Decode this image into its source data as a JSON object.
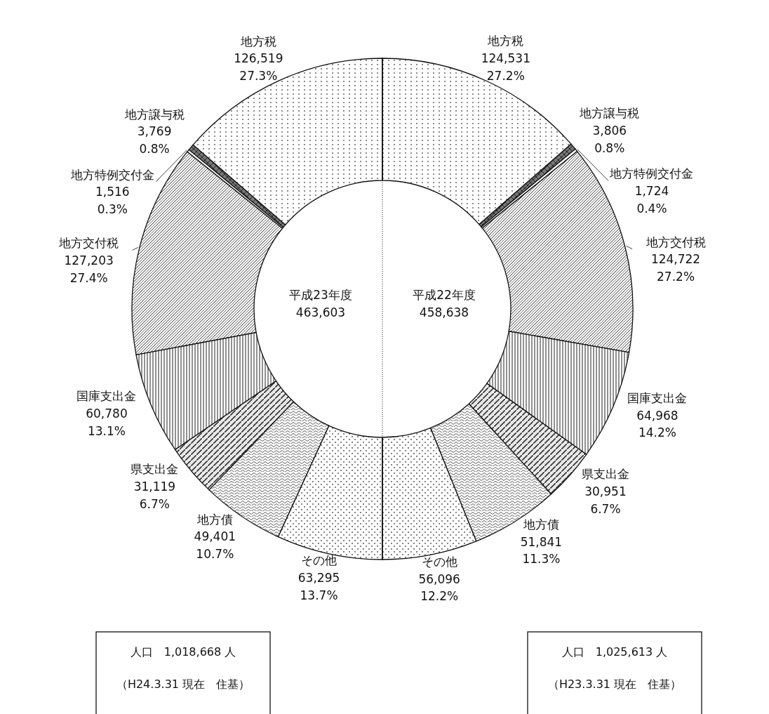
{
  "chart_data": [
    {
      "type": "donut",
      "title": "平成23年度",
      "subtitle": "463,603",
      "categories": [
        "地方税",
        "地方譲与税",
        "地方特例交付金",
        "地方交付税",
        "国庫支出金",
        "県支出金",
        "地方債",
        "その他"
      ],
      "values": [
        126519,
        3769,
        1516,
        127203,
        60780,
        31119,
        49401,
        63295
      ],
      "value_labels": [
        "126,519\n27.3%",
        "3,769\n0.8%",
        "1,516\n0.3%",
        "127,203\n27.4%",
        "60,780\n13.1%",
        "31,119\n6.7%",
        "49,401\n10.7%",
        "63,295\n13.7%"
      ],
      "colors": [
        "#ffffff",
        "#ffffff",
        "#ffffff",
        "#ffffff",
        "#ffffff",
        "#ffffff",
        "#ffffff",
        "#ffffff"
      ],
      "annotations": [
        "人口　1,018,668 人",
        "（H24.3.31 現在　住基）"
      ]
    },
    {
      "type": "donut",
      "title": "平成22年度",
      "subtitle": "458,638",
      "categories": [
        "地方税",
        "地方譲与税",
        "地方特例交付金",
        "地方交付税",
        "国庫支出金",
        "県支出金",
        "地方債",
        "その他"
      ],
      "values": [
        124531,
        3806,
        1724,
        124722,
        64968,
        30951,
        51841,
        56096
      ],
      "value_labels": [
        "124,531\n27.2%",
        "3,806\n0.8%",
        "1,724\n0.4%",
        "124,722\n27.2%",
        "64,968\n14.2%",
        "30,951\n6.7%",
        "51,841\n11.3%",
        "56,096\n12.2%"
      ],
      "colors": [
        "#ffffff",
        "#ffffff",
        "#ffffff",
        "#ffffff",
        "#ffffff",
        "#ffffff",
        "#ffffff",
        "#ffffff"
      ],
      "annotations": [
        "人口　1,025,613 人",
        "（H23.3.31 現在　住基）"
      ]
    }
  ]
}
